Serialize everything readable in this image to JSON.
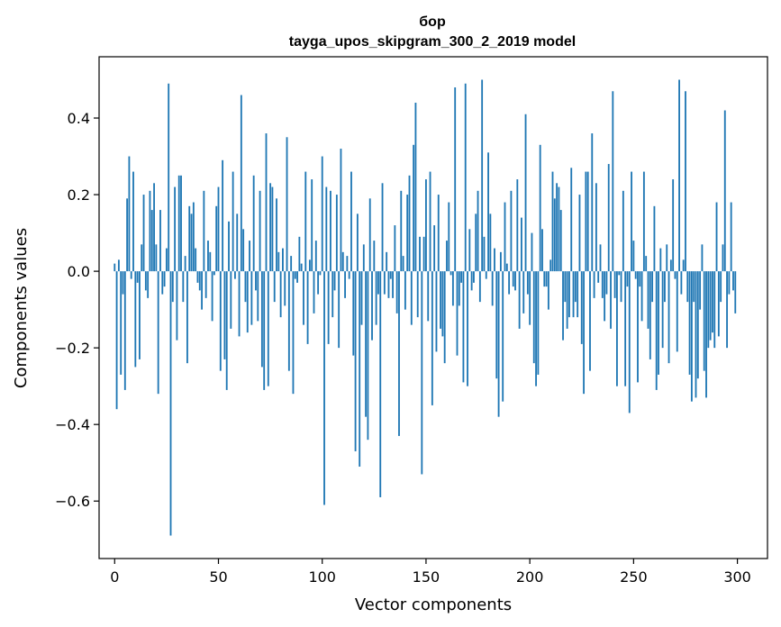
{
  "chart_data": {
    "type": "bar",
    "title": "бор",
    "subtitle": "tayga_upos_skipgram_300_2_2019 model",
    "xlabel": "Vector components",
    "ylabel": "Components values",
    "xlim": [
      -7.5,
      314.5
    ],
    "ylim": [
      -0.75,
      0.56
    ],
    "xticks": [
      0,
      50,
      100,
      150,
      200,
      250,
      300
    ],
    "xtick_labels": [
      "0",
      "50",
      "100",
      "150",
      "200",
      "250",
      "300"
    ],
    "yticks": [
      -0.6,
      -0.4,
      -0.2,
      0.0,
      0.2,
      0.4
    ],
    "ytick_labels": [
      "−0.6",
      "−0.4",
      "−0.2",
      "0.0",
      "0.2",
      "0.4"
    ],
    "grid": false,
    "bar_color": "#1f77b4",
    "values": [
      0.02,
      -0.36,
      0.03,
      -0.27,
      -0.06,
      -0.31,
      0.19,
      0.3,
      -0.02,
      0.26,
      -0.25,
      -0.03,
      -0.23,
      0.07,
      0.2,
      -0.05,
      -0.07,
      0.21,
      0.16,
      0.23,
      0.07,
      -0.32,
      0.16,
      -0.06,
      -0.04,
      0.06,
      0.49,
      -0.69,
      -0.08,
      0.22,
      -0.18,
      0.25,
      0.25,
      -0.08,
      0.04,
      -0.24,
      0.17,
      0.15,
      0.18,
      0.06,
      -0.03,
      -0.05,
      -0.1,
      0.21,
      -0.07,
      0.08,
      0.05,
      -0.13,
      -0.01,
      0.17,
      0.22,
      -0.26,
      0.29,
      -0.23,
      -0.31,
      0.13,
      -0.15,
      0.26,
      -0.02,
      0.15,
      -0.17,
      0.46,
      0.11,
      -0.08,
      -0.16,
      0.08,
      -0.14,
      0.25,
      -0.05,
      -0.13,
      0.21,
      -0.25,
      -0.31,
      0.36,
      -0.3,
      0.23,
      0.22,
      -0.08,
      0.19,
      0.05,
      -0.12,
      0.06,
      -0.09,
      0.35,
      -0.26,
      0.04,
      -0.32,
      -0.02,
      -0.03,
      0.09,
      0.02,
      -0.14,
      0.26,
      -0.19,
      0.03,
      0.24,
      -0.11,
      0.08,
      -0.06,
      -0.01,
      0.3,
      -0.61,
      0.22,
      -0.19,
      0.21,
      -0.12,
      -0.05,
      0.2,
      -0.2,
      0.32,
      0.05,
      -0.07,
      0.04,
      -0.02,
      0.26,
      -0.22,
      -0.47,
      0.15,
      -0.51,
      -0.14,
      0.07,
      -0.38,
      -0.44,
      0.19,
      -0.18,
      0.08,
      -0.14,
      -0.06,
      -0.59,
      0.23,
      -0.06,
      0.05,
      -0.07,
      -0.02,
      -0.07,
      0.12,
      -0.11,
      -0.43,
      0.21,
      0.04,
      -0.1,
      0.2,
      0.25,
      -0.14,
      0.33,
      0.44,
      -0.12,
      0.09,
      -0.53,
      0.09,
      0.24,
      -0.13,
      0.26,
      -0.35,
      0.12,
      -0.21,
      0.2,
      -0.15,
      -0.17,
      -0.24,
      0.08,
      0.18,
      -0.01,
      -0.09,
      0.48,
      -0.22,
      -0.09,
      -0.03,
      -0.29,
      0.49,
      -0.3,
      0.11,
      -0.05,
      -0.03,
      0.15,
      0.21,
      -0.08,
      0.5,
      0.09,
      -0.02,
      0.31,
      0.15,
      -0.09,
      0.06,
      -0.28,
      -0.38,
      0.05,
      -0.34,
      0.18,
      0.02,
      -0.06,
      0.21,
      -0.04,
      -0.05,
      0.24,
      -0.15,
      0.14,
      -0.11,
      0.41,
      -0.06,
      -0.14,
      0.1,
      -0.24,
      -0.3,
      -0.27,
      0.33,
      0.11,
      -0.04,
      -0.04,
      -0.1,
      0.03,
      0.26,
      0.19,
      0.23,
      0.22,
      0.16,
      -0.18,
      -0.08,
      -0.15,
      -0.12,
      0.27,
      -0.12,
      -0.08,
      -0.12,
      0.2,
      -0.19,
      -0.32,
      0.26,
      0.26,
      -0.26,
      0.36,
      -0.07,
      0.23,
      -0.03,
      0.07,
      -0.07,
      -0.13,
      -0.06,
      0.28,
      -0.15,
      0.47,
      -0.07,
      -0.3,
      -0.01,
      -0.08,
      0.21,
      -0.3,
      -0.04,
      -0.37,
      0.26,
      0.08,
      -0.02,
      -0.29,
      -0.04,
      -0.13,
      0.26,
      0.04,
      -0.15,
      -0.23,
      -0.08,
      0.17,
      -0.31,
      -0.27,
      0.06,
      -0.2,
      -0.08,
      0.07,
      -0.24,
      0.03,
      0.24,
      -0.02,
      -0.21,
      0.5,
      -0.06,
      0.03,
      0.47,
      -0.08,
      -0.27,
      -0.34,
      -0.08,
      -0.33,
      -0.28,
      -0.1,
      0.07,
      -0.26,
      -0.33,
      -0.2,
      -0.18,
      -0.16,
      -0.2,
      0.18,
      -0.17,
      -0.08,
      0.07,
      0.42,
      -0.2,
      -0.06,
      0.18,
      -0.05,
      -0.11
    ]
  }
}
